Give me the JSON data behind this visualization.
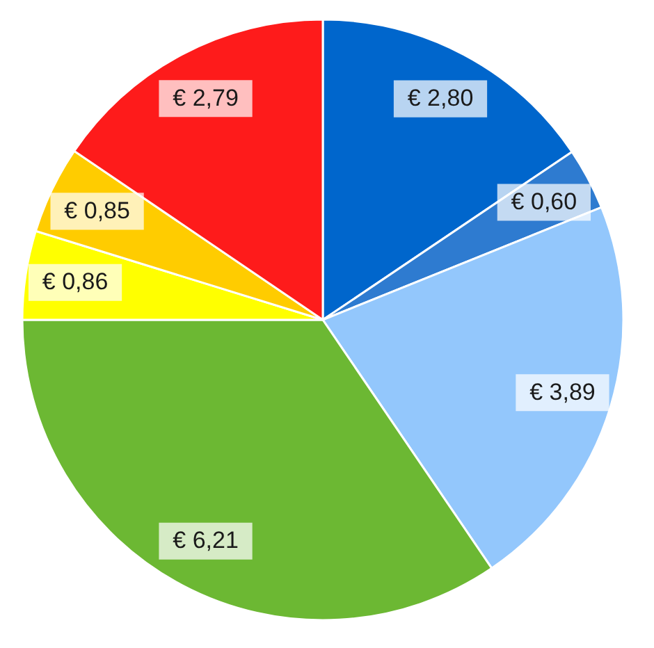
{
  "chart_data": {
    "type": "pie",
    "categories": [
      null,
      null,
      null,
      null,
      null,
      null,
      null
    ],
    "values": [
      2.8,
      0.6,
      3.89,
      6.21,
      0.86,
      0.85,
      2.79
    ],
    "colors": [
      "#0066cc",
      "#2e7bd0",
      "#93c7fc",
      "#6cb833",
      "#ffff00",
      "#ffcc00",
      "#fe1b1b"
    ],
    "value_labels": [
      "€ 2,80",
      "€ 0,60",
      "€ 3,89",
      "€ 6,21",
      "€ 0,86",
      "€ 0,85",
      "€ 2,79"
    ]
  }
}
